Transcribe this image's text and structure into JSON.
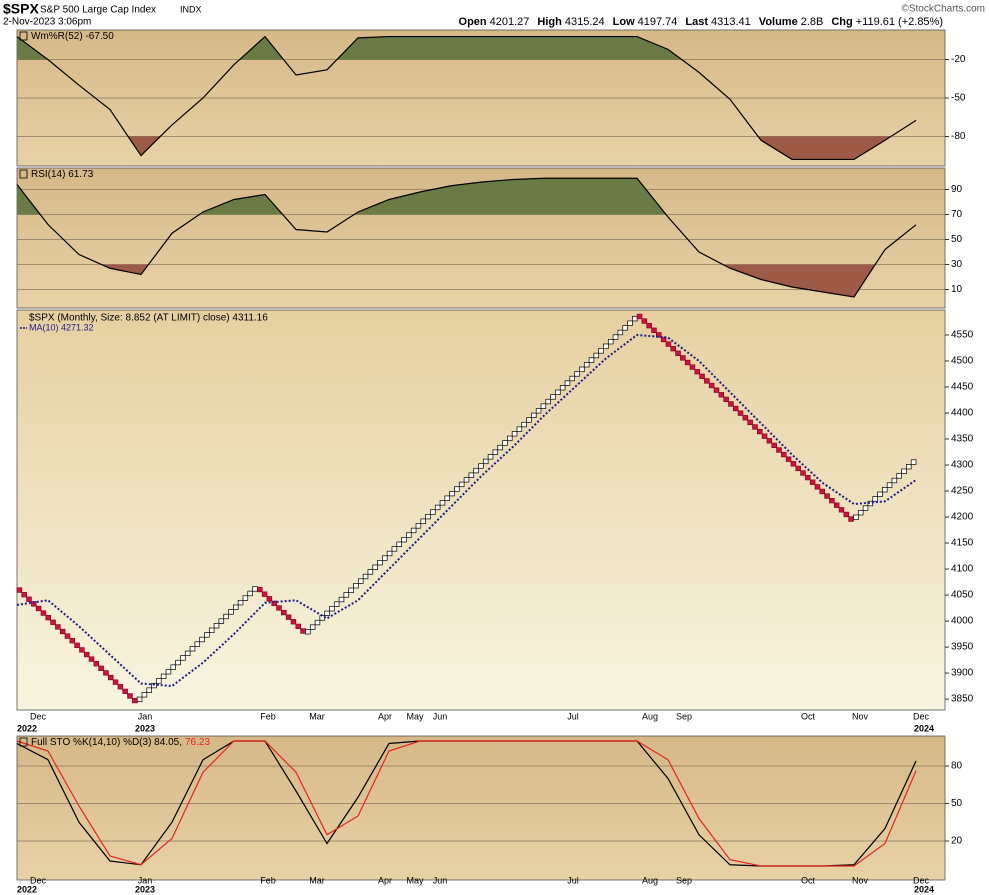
{
  "header": {
    "symbol": "$SPX",
    "name": "S&P 500 Large Cap Index",
    "exchange": "INDX",
    "date": "2-Nov-2023 3:06pm",
    "watermark": "©StockCharts.com",
    "quote": [
      {
        "label": "Open",
        "value": "4201.27"
      },
      {
        "label": "High",
        "value": "4315.24"
      },
      {
        "label": "Low",
        "value": "4197.74"
      },
      {
        "label": "Last",
        "value": "4313.41"
      },
      {
        "label": "Volume",
        "value": "2.8B"
      },
      {
        "label": "Chg",
        "value": "+119.61 (+2.85%)"
      }
    ]
  },
  "time_axis": {
    "months": [
      "Dec",
      "Jan",
      "Feb",
      "Mar",
      "Apr",
      "May",
      "Jun",
      "Jul",
      "Aug",
      "Sep",
      "Oct",
      "Nov",
      "Dec"
    ],
    "years": [
      "2022",
      "2023",
      "2024"
    ]
  },
  "chart_data": [
    {
      "type": "line",
      "title": "Wm%R(52) -67.50",
      "ylim": [
        -100,
        0
      ],
      "yticks": [
        -20,
        -50,
        -80
      ],
      "grid": true,
      "color": "#000000",
      "fill_above": {
        "level": -20,
        "color": "#6b7b45"
      },
      "fill_below": {
        "level": -80,
        "color": "#9c5a47"
      },
      "values": [
        -2,
        -20,
        -40,
        -59,
        -95,
        -71,
        -50,
        -24,
        -2,
        -32,
        -28,
        -3,
        -2,
        -2,
        -2,
        -2,
        -2,
        -2,
        -2,
        -2,
        -2,
        -12,
        -30,
        -51,
        -83,
        -98,
        -98,
        -98,
        -83,
        -67.5
      ]
    },
    {
      "type": "line",
      "title": "RSI(14) 61.73",
      "ylim": [
        0,
        100
      ],
      "yticks": [
        90,
        70,
        50,
        30,
        10
      ],
      "grid": true,
      "color": "#000000",
      "fill_above": {
        "level": 70,
        "color": "#6b7b45"
      },
      "fill_below": {
        "level": 30,
        "color": "#9c5a47"
      },
      "values": [
        94,
        62,
        38,
        27,
        22,
        55,
        72,
        82,
        86,
        58,
        56,
        72,
        82,
        88,
        93,
        96,
        98,
        99,
        99,
        99,
        99,
        68,
        40,
        27,
        18,
        12,
        8,
        4,
        42,
        61.73
      ]
    },
    {
      "type": "renko",
      "title": "$SPX (Monthly, Size: 8.852 (AT LIMIT) close) 4311.16",
      "ylim": [
        3829,
        4598
      ],
      "yticks": [
        3850,
        3900,
        3950,
        4000,
        4050,
        4100,
        4150,
        4200,
        4250,
        4300,
        4350,
        4400,
        4450,
        4500,
        4550
      ],
      "grid": false,
      "brick_size": 8.852,
      "up_color": "#ffffff",
      "down_color": "#d2103c",
      "values": [
        4064,
        3845,
        4065,
        3975,
        4590,
        4195,
        4311.16
      ],
      "series": [
        {
          "name": "MA(10) 4271.32",
          "color": "#1c1c8e",
          "values": [
            4031,
            4040,
            3990,
            3935,
            3880,
            3875,
            3920,
            3975,
            4035,
            4040,
            4005,
            4040,
            4100,
            4160,
            4220,
            4280,
            4335,
            4395,
            4450,
            4505,
            4550,
            4545,
            4500,
            4440,
            4380,
            4320,
            4265,
            4225,
            4230,
            4271.32
          ]
        }
      ]
    },
    {
      "type": "line",
      "title": "Full STO %K(14,10) %D(3) 84.05,",
      "title_d": "76.23",
      "ylim": [
        0,
        100
      ],
      "yticks": [
        80,
        50,
        20
      ],
      "grid": true,
      "series": [
        {
          "color": "#000000",
          "values": [
            98,
            85,
            35,
            4,
            1,
            35,
            85,
            100,
            100,
            60,
            18,
            55,
            98,
            100,
            100,
            100,
            100,
            100,
            100,
            100,
            100,
            70,
            25,
            1,
            0,
            0,
            0,
            1,
            30,
            84.05
          ]
        },
        {
          "color": "#e8241c",
          "values": [
            100,
            92,
            48,
            8,
            1,
            22,
            75,
            100,
            100,
            75,
            25,
            40,
            92,
            100,
            100,
            100,
            100,
            100,
            100,
            100,
            100,
            85,
            38,
            5,
            0,
            0,
            0,
            0,
            18,
            76.23
          ]
        }
      ]
    }
  ]
}
